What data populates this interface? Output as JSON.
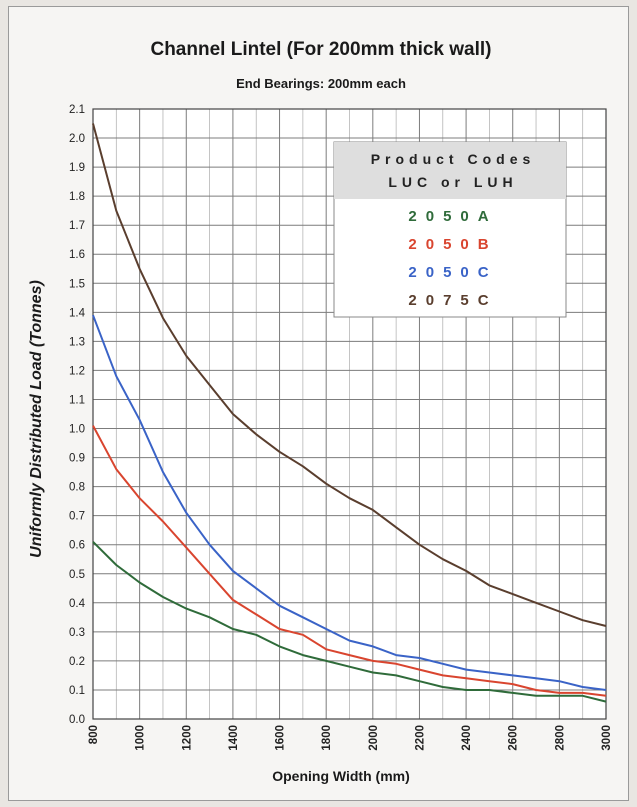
{
  "chart_data": {
    "type": "line",
    "title": "Channel Lintel (For 200mm thick wall)",
    "subtitle": "End Bearings: 200mm each",
    "xlabel": "Opening Width (mm)",
    "ylabel": "Uniformly Distributed Load (Tonnes)",
    "xlim": [
      800,
      3000
    ],
    "ylim": [
      0,
      2.1
    ],
    "x_ticks": [
      800,
      1000,
      1200,
      1400,
      1600,
      1800,
      2000,
      2200,
      2400,
      2600,
      2800,
      3000
    ],
    "y_ticks": [
      0.0,
      0.1,
      0.2,
      0.3,
      0.4,
      0.5,
      0.6,
      0.7,
      0.8,
      0.9,
      1.0,
      1.1,
      1.2,
      1.3,
      1.4,
      1.5,
      1.6,
      1.7,
      1.8,
      1.9,
      2.0,
      2.1
    ],
    "grid": true,
    "legend": {
      "placement": "top-right",
      "heading_line1": "Product Codes",
      "heading_line2": "LUC or LUH"
    },
    "series": [
      {
        "name": "2050A",
        "color": "#2f6b3a",
        "x": [
          800,
          900,
          1000,
          1100,
          1200,
          1300,
          1400,
          1500,
          1600,
          1700,
          1800,
          1900,
          2000,
          2100,
          2200,
          2300,
          2400,
          2500,
          2600,
          2700,
          2800,
          2900,
          3000
        ],
        "y": [
          0.61,
          0.53,
          0.47,
          0.42,
          0.38,
          0.35,
          0.31,
          0.29,
          0.25,
          0.22,
          0.2,
          0.18,
          0.16,
          0.15,
          0.13,
          0.11,
          0.1,
          0.1,
          0.09,
          0.08,
          0.08,
          0.08,
          0.06
        ]
      },
      {
        "name": "2050B",
        "color": "#d9452f",
        "x": [
          800,
          900,
          1000,
          1100,
          1200,
          1300,
          1400,
          1500,
          1600,
          1700,
          1800,
          1900,
          2000,
          2100,
          2200,
          2300,
          2400,
          2500,
          2600,
          2700,
          2800,
          2900,
          3000
        ],
        "y": [
          1.01,
          0.86,
          0.76,
          0.68,
          0.59,
          0.5,
          0.41,
          0.36,
          0.31,
          0.29,
          0.24,
          0.22,
          0.2,
          0.19,
          0.17,
          0.15,
          0.14,
          0.13,
          0.12,
          0.1,
          0.09,
          0.09,
          0.08
        ]
      },
      {
        "name": "2050C",
        "color": "#3a63c7",
        "x": [
          800,
          900,
          1000,
          1100,
          1200,
          1300,
          1400,
          1500,
          1600,
          1700,
          1800,
          1900,
          2000,
          2100,
          2200,
          2300,
          2400,
          2500,
          2600,
          2700,
          2800,
          2900,
          3000
        ],
        "y": [
          1.39,
          1.18,
          1.03,
          0.85,
          0.71,
          0.6,
          0.51,
          0.45,
          0.39,
          0.35,
          0.31,
          0.27,
          0.25,
          0.22,
          0.21,
          0.19,
          0.17,
          0.16,
          0.15,
          0.14,
          0.13,
          0.11,
          0.1
        ]
      },
      {
        "name": "2075C",
        "color": "#5a3e2e",
        "x": [
          800,
          900,
          1000,
          1100,
          1200,
          1300,
          1400,
          1500,
          1600,
          1700,
          1800,
          1900,
          2000,
          2100,
          2200,
          2300,
          2400,
          2500,
          2600,
          2700,
          2800,
          2900,
          3000
        ],
        "y": [
          2.05,
          1.75,
          1.55,
          1.38,
          1.25,
          1.15,
          1.05,
          0.98,
          0.92,
          0.87,
          0.81,
          0.76,
          0.72,
          0.66,
          0.6,
          0.55,
          0.51,
          0.46,
          0.43,
          0.4,
          0.37,
          0.34,
          0.32
        ]
      }
    ]
  }
}
